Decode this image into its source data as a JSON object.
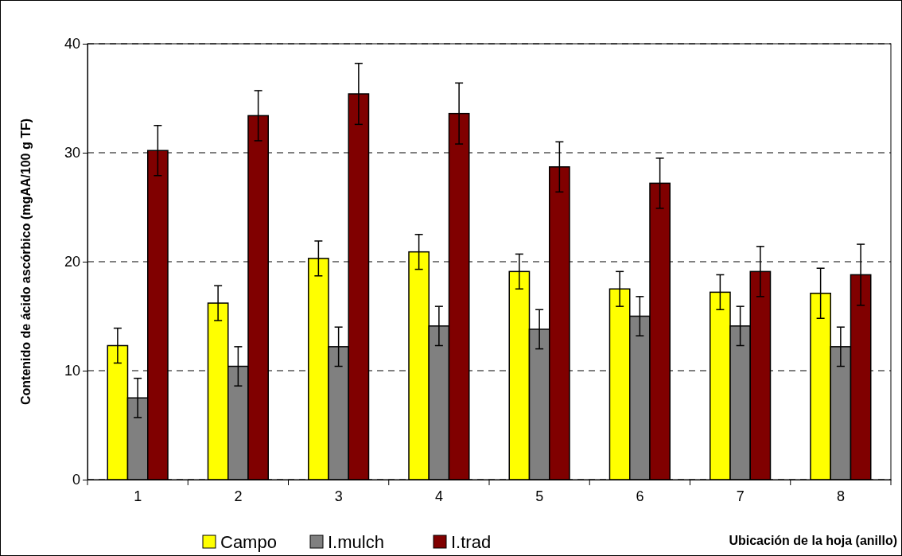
{
  "chart_data": {
    "type": "bar",
    "xlabel": "Ubicación de la hoja (anillo)",
    "ylabel": "Contenido de ácido ascórbico (mgAA/100 g TF)",
    "categories": [
      "1",
      "2",
      "3",
      "4",
      "5",
      "6",
      "7",
      "8"
    ],
    "series": [
      {
        "name": "Campo",
        "color": "#ffff00",
        "values": [
          12.3,
          16.2,
          20.3,
          20.9,
          19.1,
          17.5,
          17.2,
          17.1
        ],
        "errors": [
          1.6,
          1.6,
          1.6,
          1.6,
          1.6,
          1.6,
          1.6,
          2.3
        ]
      },
      {
        "name": "I.mulch",
        "color": "#808080",
        "values": [
          7.5,
          10.4,
          12.2,
          14.1,
          13.8,
          15.0,
          14.1,
          12.2
        ],
        "errors": [
          1.8,
          1.8,
          1.8,
          1.8,
          1.8,
          1.8,
          1.8,
          1.8
        ]
      },
      {
        "name": "I.trad",
        "color": "#800000",
        "values": [
          30.2,
          33.4,
          35.4,
          33.6,
          28.7,
          27.2,
          19.1,
          18.8
        ],
        "errors": [
          2.3,
          2.3,
          2.8,
          2.8,
          2.3,
          2.3,
          2.3,
          2.8
        ]
      }
    ],
    "ylim": [
      0,
      40
    ],
    "yticks": [
      0,
      10,
      20,
      30,
      40
    ],
    "grid": "y",
    "legend": "bottom"
  }
}
